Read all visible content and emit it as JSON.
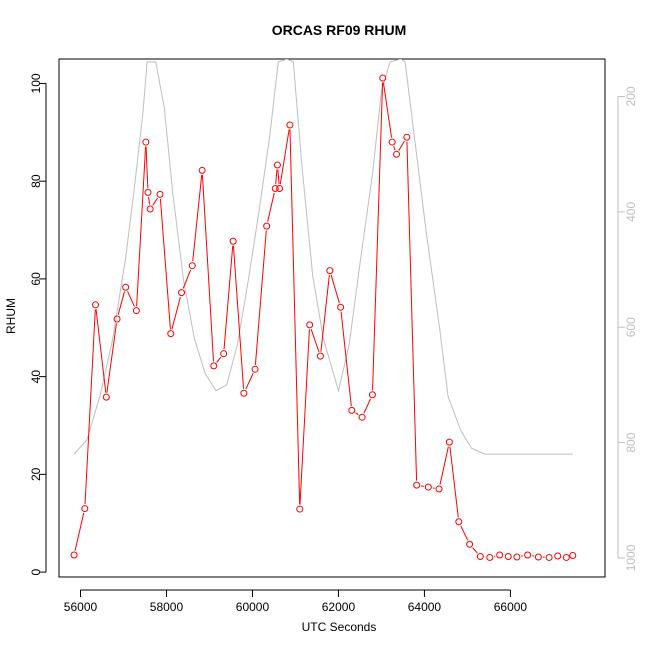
{
  "chart_data": {
    "type": "line",
    "title": "ORCAS RF09 RHUM",
    "xlabel": "UTC Seconds",
    "ylabel": "RHUM",
    "xlim": [
      55500,
      68200
    ],
    "ylim": [
      -1,
      105
    ],
    "x_ticks": [
      56000,
      58000,
      60000,
      62000,
      64000,
      66000
    ],
    "y_ticks": [
      0,
      20,
      40,
      60,
      80,
      100
    ],
    "y2_ticks": [
      200,
      400,
      600,
      800,
      1000
    ],
    "y2lim": [
      1033,
      135
    ],
    "grid": false,
    "colors": {
      "rhum": "#ff0000",
      "pressure": "#bebebe"
    },
    "series": [
      {
        "axis": "left",
        "style": "line-points",
        "x": [
          55850,
          56100,
          56350,
          56600,
          56850,
          57050,
          57300,
          57520,
          57570,
          57620,
          57850,
          58100,
          58350,
          58600,
          58830,
          59100,
          59330,
          59550,
          59800,
          60060,
          60330,
          60530,
          60580,
          60630,
          60870,
          61100,
          61330,
          61580,
          61800,
          62050,
          62310,
          62550,
          62790,
          63030,
          63250,
          63350,
          63590,
          63820,
          64090,
          64340,
          64580,
          64800,
          65050,
          65300,
          65520,
          65750,
          65950,
          66150,
          66400,
          66650,
          66900,
          67100,
          67300,
          67450
        ],
        "y": [
          3.5,
          13,
          54.7,
          35.8,
          51.8,
          58.3,
          53.5,
          88,
          77.7,
          74.3,
          77.3,
          48.8,
          57.2,
          62.7,
          82.2,
          42.2,
          44.7,
          67.7,
          36.6,
          41.5,
          70.8,
          78.5,
          83.3,
          78.5,
          91.5,
          12.9,
          50.6,
          44.2,
          61.7,
          54.2,
          33.1,
          31.7,
          36.3,
          101.1,
          88,
          85.5,
          89,
          17.8,
          17.4,
          17,
          26.6,
          10.3,
          5.7,
          3.2,
          3,
          3.5,
          3.2,
          3.1,
          3.5,
          3.1,
          3,
          3.3,
          3,
          3.4
        ]
      },
      {
        "axis": "right",
        "style": "line",
        "x": [
          55850,
          56150,
          56450,
          56750,
          57050,
          57250,
          57450,
          57550,
          57750,
          57950,
          58150,
          58400,
          58650,
          58900,
          59150,
          59400,
          59650,
          59900,
          60150,
          60400,
          60600,
          60800,
          60950,
          61150,
          61400,
          61650,
          62000,
          62250,
          62500,
          62800,
          63000,
          63200,
          63450,
          63550,
          63800,
          64050,
          64350,
          64550,
          64850,
          65100,
          65400,
          65700,
          66000,
          66500,
          67000,
          67450
        ],
        "y": [
          820,
          795,
          720,
          620,
          480,
          360,
          230,
          140,
          140,
          220,
          370,
          520,
          620,
          680,
          710,
          700,
          630,
          520,
          400,
          270,
          140,
          135,
          140,
          320,
          510,
          620,
          710,
          630,
          490,
          330,
          190,
          140,
          135,
          140,
          290,
          440,
          600,
          720,
          780,
          810,
          820,
          820,
          820,
          820,
          820,
          820
        ]
      }
    ]
  }
}
